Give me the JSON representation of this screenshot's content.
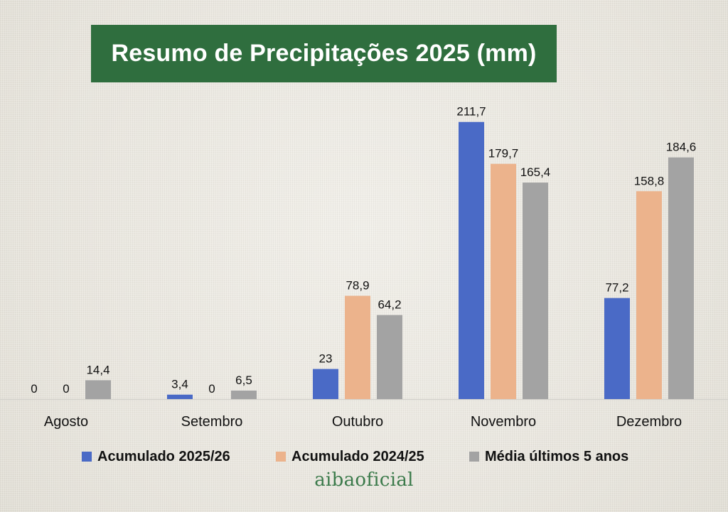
{
  "title": "Resumo de Precipitações 2025 (mm)",
  "watermark": "aibaoficial",
  "colors": {
    "title_bg": "#2f6e3e",
    "series": [
      "#4a6ac6",
      "#ecb38c",
      "#a3a3a3"
    ],
    "baseline": "#d4d2cc",
    "label_text": "#111111"
  },
  "chart_data": {
    "type": "bar",
    "title": "Resumo de Precipitações 2025 (mm)",
    "categories": [
      "Agosto",
      "Setembro",
      "Outubro",
      "Novembro",
      "Dezembro"
    ],
    "series": [
      {
        "name": "Acumulado 2025/26",
        "values": [
          0,
          3.4,
          23,
          211.7,
          77.2
        ],
        "labels": [
          "0",
          "3,4",
          "23",
          "211,7",
          "77,2"
        ]
      },
      {
        "name": "Acumulado 2024/25",
        "values": [
          0,
          0,
          78.9,
          179.7,
          158.8
        ],
        "labels": [
          "0",
          "0",
          "78,9",
          "179,7",
          "158,8"
        ]
      },
      {
        "name": "Média últimos 5 anos",
        "values": [
          14.4,
          6.5,
          64.2,
          165.4,
          184.6
        ],
        "labels": [
          "14,4",
          "6,5",
          "64,2",
          "165,4",
          "184,6"
        ]
      }
    ],
    "xlabel": "",
    "ylabel": "",
    "legend": "bottom",
    "grid": false
  }
}
